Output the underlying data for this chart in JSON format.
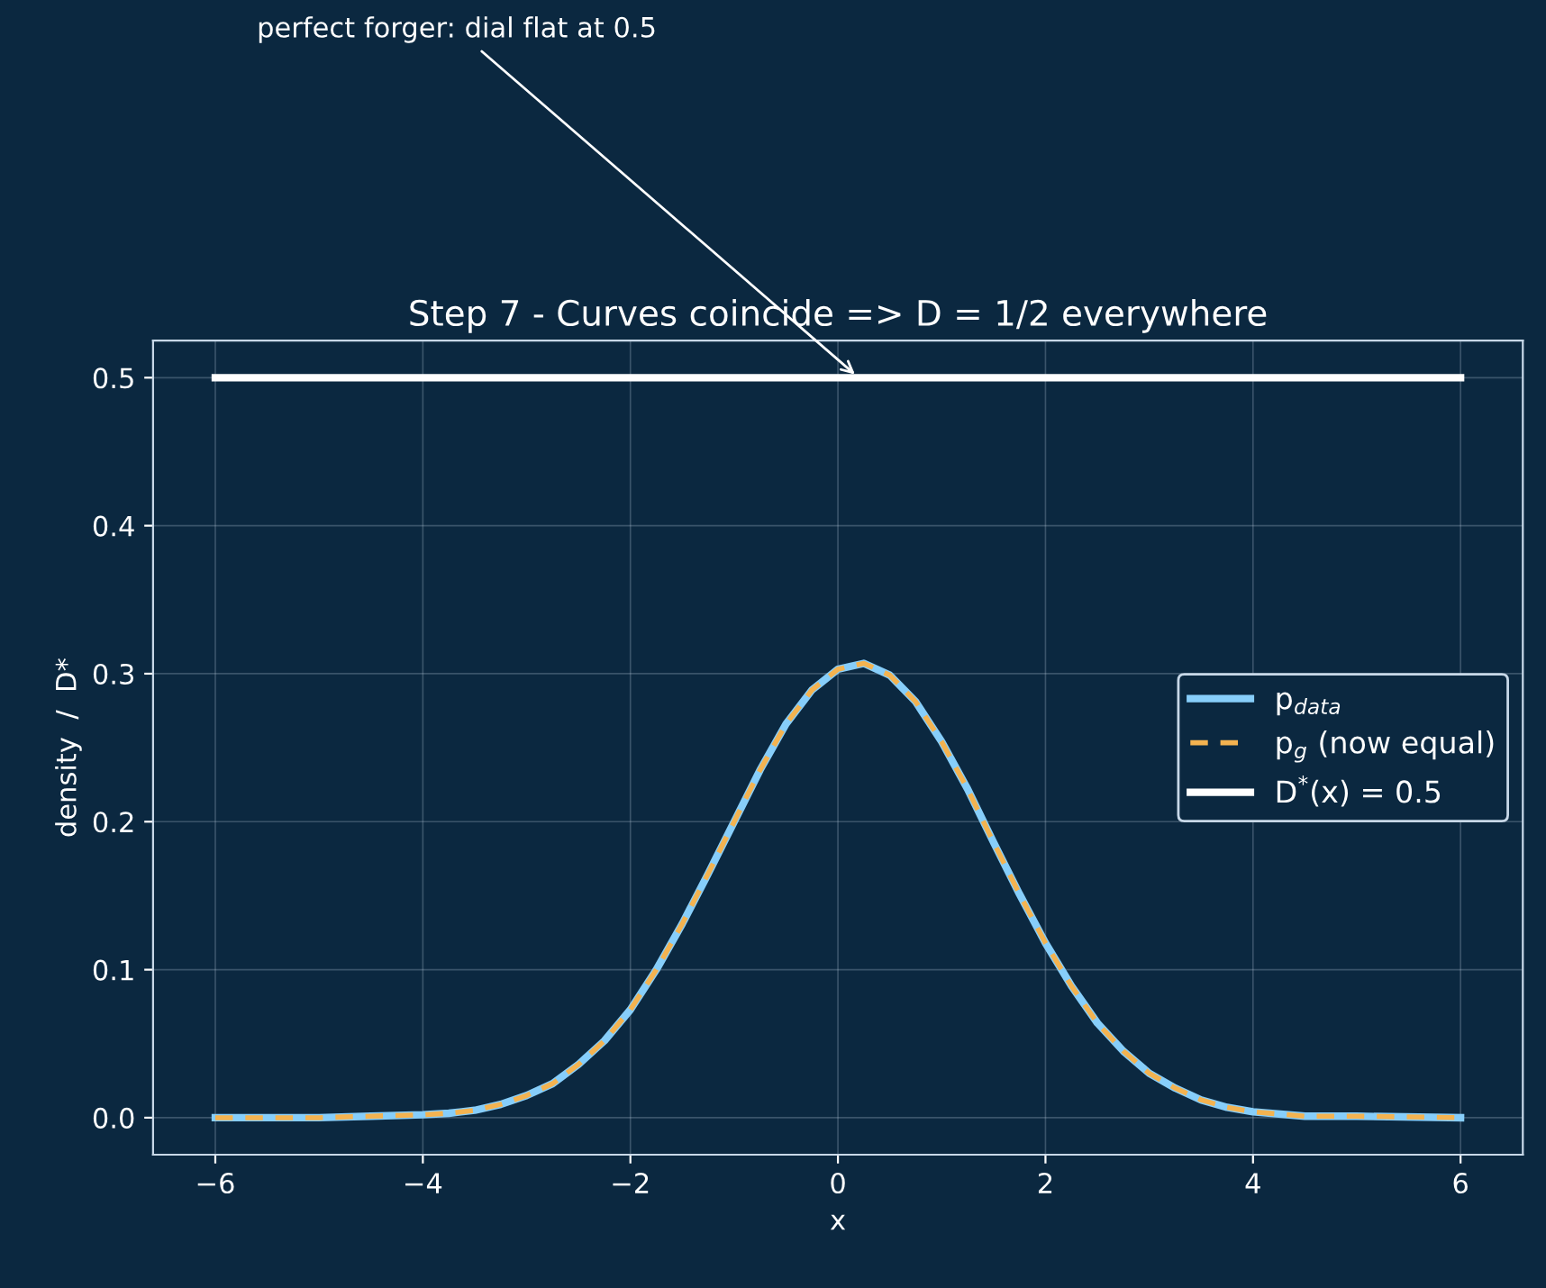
{
  "chart_data": {
    "type": "line",
    "title": "Step 7 - Curves coincide => D = 1/2 everywhere",
    "xlabel": "x",
    "ylabel": "density  /  D*",
    "x": [
      -6,
      -5,
      -4.5,
      -4,
      -3.75,
      -3.5,
      -3.25,
      -3,
      -2.75,
      -2.5,
      -2.25,
      -2,
      -1.75,
      -1.5,
      -1.25,
      -1,
      -0.75,
      -0.5,
      -0.25,
      0,
      0.25,
      0.5,
      0.75,
      1,
      1.25,
      1.5,
      1.75,
      2,
      2.25,
      2.5,
      2.75,
      3,
      3.25,
      3.5,
      3.75,
      4,
      4.5,
      5,
      6
    ],
    "series": [
      {
        "name": "p$_{data}$",
        "color": "#87cefa",
        "line_style": "solid",
        "values": [
          0,
          0,
          0.001,
          0.002,
          0.003,
          0.005,
          0.009,
          0.015,
          0.023,
          0.036,
          0.052,
          0.073,
          0.1,
          0.131,
          0.165,
          0.2,
          0.235,
          0.266,
          0.289,
          0.303,
          0.307,
          0.299,
          0.281,
          0.254,
          0.222,
          0.186,
          0.151,
          0.118,
          0.089,
          0.064,
          0.045,
          0.03,
          0.02,
          0.012,
          0.007,
          0.004,
          0.001,
          0.001,
          0
        ]
      },
      {
        "name": "p$_{g}$ (now equal)",
        "color": "#f4b350",
        "line_style": "dashed",
        "values": [
          0,
          0,
          0.001,
          0.002,
          0.003,
          0.005,
          0.009,
          0.015,
          0.023,
          0.036,
          0.052,
          0.073,
          0.1,
          0.131,
          0.165,
          0.2,
          0.235,
          0.266,
          0.289,
          0.303,
          0.307,
          0.299,
          0.281,
          0.254,
          0.222,
          0.186,
          0.151,
          0.118,
          0.089,
          0.064,
          0.045,
          0.03,
          0.02,
          0.012,
          0.007,
          0.004,
          0.001,
          0.001,
          0
        ]
      },
      {
        "name": "D$^{*}$(x) = 0.5",
        "color": "#ffffff",
        "line_style": "solid",
        "x": [
          -6,
          6
        ],
        "values": [
          0.5,
          0.5
        ]
      }
    ],
    "annotations": [
      {
        "text": "perfect forger: dial flat at 0.5",
        "x": 0.2,
        "y": 0.5
      }
    ],
    "xlim": [
      -6.6,
      6.6
    ],
    "ylim": [
      -0.025,
      0.525
    ],
    "xticks": [
      {
        "value": -6,
        "label": "−6"
      },
      {
        "value": -4,
        "label": "−4"
      },
      {
        "value": -2,
        "label": "−2"
      },
      0,
      2,
      4,
      6
    ],
    "yticks": [
      {
        "value": 0,
        "label": "0.0"
      },
      0.1,
      0.2,
      0.3,
      0.4,
      0.5
    ],
    "grid": true,
    "legend": "center right",
    "marker": "none"
  }
}
